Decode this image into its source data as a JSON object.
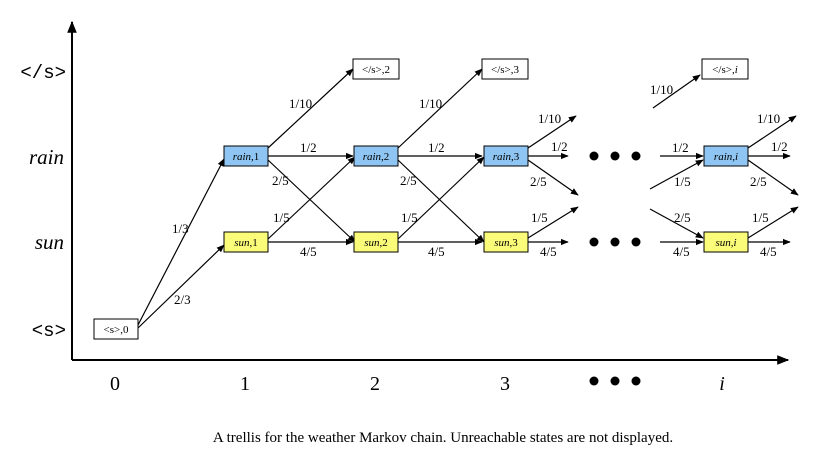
{
  "colors": {
    "rain_fill": "#8ec5f2",
    "sun_fill": "#fbfb7a",
    "plain_fill": "#ffffff",
    "stroke": "#000000"
  },
  "y_axis": {
    "end": "</s>",
    "rain": "rain",
    "sun": "sun",
    "start": "<s>"
  },
  "x_axis": {
    "ticks": [
      "0",
      "1",
      "2",
      "3",
      "i"
    ]
  },
  "nodes": {
    "start0": {
      "prefix": "<s>",
      "suffix": ",0"
    },
    "end2": {
      "prefix": "</s>",
      "suffix": ",2"
    },
    "end3": {
      "prefix": "</s>",
      "suffix": ",3"
    },
    "endi": {
      "prefix": "</s>",
      "suffix": ",i"
    },
    "rain1": {
      "prefix": "rain",
      "suffix": ",1"
    },
    "rain2": {
      "prefix": "rain",
      "suffix": ",2"
    },
    "rain3": {
      "prefix": "rain",
      "suffix": ",3"
    },
    "raini": {
      "prefix": "rain",
      "suffix": ",i"
    },
    "sun1": {
      "prefix": "sun",
      "suffix": ",1"
    },
    "sun2": {
      "prefix": "sun",
      "suffix": ",2"
    },
    "sun3": {
      "prefix": "sun",
      "suffix": ",3"
    },
    "suni": {
      "prefix": "sun",
      "suffix": ",i"
    }
  },
  "probs": {
    "start_rain": "1/3",
    "start_sun": "2/3",
    "r1_end": "1/10",
    "r1_rain": "1/2",
    "r1_sun": "2/5",
    "s1_rain": "1/5",
    "s1_sun": "4/5",
    "r2_end": "1/10",
    "r2_rain": "1/2",
    "r2_sun": "2/5",
    "s2_rain": "1/5",
    "s2_sun": "4/5",
    "r3_end": "1/10",
    "r3_rain": "1/2",
    "r3_sun": "2/5",
    "s3_rain": "1/5",
    "s3_sun": "4/5",
    "in_end": "1/10",
    "in_rain_rain": "1/2",
    "in_sun_rain": "1/5",
    "in_rain_sun": "2/5",
    "in_sun_sun": "4/5",
    "ri_end": "1/10",
    "ri_rain": "1/2",
    "ri_sun": "2/5",
    "si_rain": "1/5",
    "si_sun": "4/5"
  },
  "caption": "A trellis for the weather Markov chain. Unreachable states are not displayed."
}
